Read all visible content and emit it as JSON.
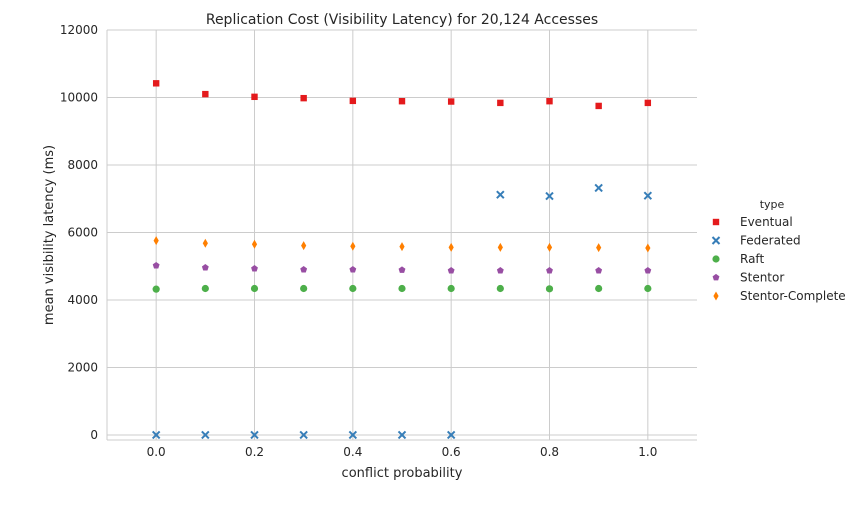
{
  "chart_data": {
    "type": "scatter",
    "title": "Replication Cost (Visibility Latency) for 20,124 Accesses",
    "xlabel": "conflict probability",
    "ylabel": "mean visibility latency (ms)",
    "xlim": [
      -0.1,
      1.1
    ],
    "ylim": [
      -150,
      12000
    ],
    "xticks": [
      0.0,
      0.2,
      0.4,
      0.6,
      0.8,
      1.0
    ],
    "xtick_labels": [
      "0.0",
      "0.2",
      "0.4",
      "0.6",
      "0.8",
      "1.0"
    ],
    "yticks": [
      0,
      2000,
      4000,
      6000,
      8000,
      10000,
      12000
    ],
    "ytick_labels": [
      "0",
      "2000",
      "4000",
      "6000",
      "8000",
      "10000",
      "12000"
    ],
    "grid": true,
    "legend": {
      "title": "type",
      "placement": "right"
    },
    "x": [
      0.0,
      0.1,
      0.2,
      0.3,
      0.4,
      0.5,
      0.6,
      0.7,
      0.8,
      0.9,
      1.0
    ],
    "series": [
      {
        "name": "Eventual",
        "marker": "square",
        "color": "#e41a1c",
        "values": [
          10420,
          10100,
          10020,
          9980,
          9900,
          9890,
          9880,
          9840,
          9890,
          9750,
          9840
        ]
      },
      {
        "name": "Federated",
        "marker": "x",
        "color": "#377eb8",
        "values": [
          0,
          0,
          0,
          0,
          0,
          0,
          0,
          7120,
          7080,
          7320,
          7090
        ]
      },
      {
        "name": "Raft",
        "marker": "circle",
        "color": "#4daf4a",
        "values": [
          4320,
          4340,
          4340,
          4340,
          4340,
          4340,
          4340,
          4340,
          4330,
          4340,
          4340
        ]
      },
      {
        "name": "Stentor",
        "marker": "pentagon",
        "color": "#984ea3",
        "values": [
          5020,
          4960,
          4930,
          4900,
          4900,
          4890,
          4870,
          4870,
          4870,
          4870,
          4870
        ]
      },
      {
        "name": "Stentor-Complete",
        "marker": "diamond",
        "color": "#ff7f00",
        "values": [
          5760,
          5680,
          5650,
          5610,
          5590,
          5580,
          5560,
          5560,
          5560,
          5550,
          5540
        ]
      }
    ]
  }
}
